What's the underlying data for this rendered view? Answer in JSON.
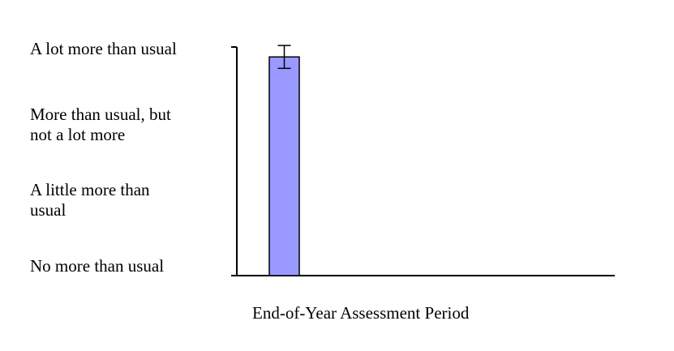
{
  "chart_data": {
    "type": "bar",
    "title": "",
    "xlabel": "End-of-Year Assessment Period",
    "ylabel": "",
    "categories": [
      "End-of-Year Assessment Period"
    ],
    "series": [
      {
        "values": [
          2.87
        ],
        "error": [
          0.15
        ]
      }
    ],
    "y_tick_labels": [
      "No more than usual",
      "A little more than\nusual",
      "More than usual, but\nnot a lot more",
      "A lot more than usual"
    ],
    "ylim": [
      0,
      3
    ],
    "grid": false,
    "legend": "none",
    "bar_color": "#9999ff",
    "bar_outline_color": "#000000"
  }
}
